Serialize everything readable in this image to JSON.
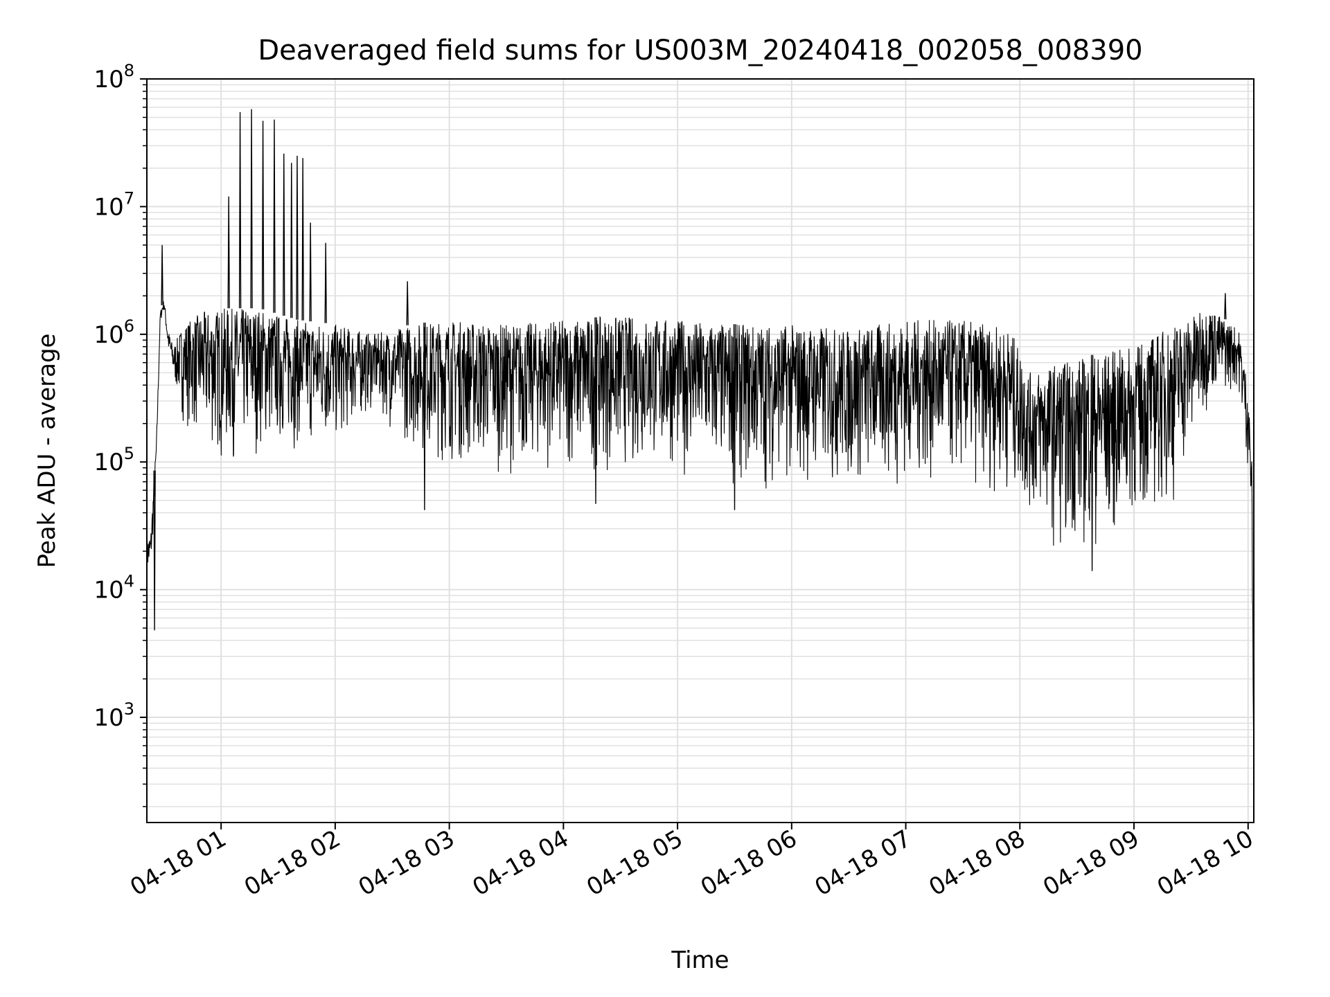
{
  "chart_data": {
    "type": "line",
    "title": "Deaveraged field sums for US003M_20240418_002058_008390",
    "xlabel": "Time",
    "ylabel": "Peak ADU - average",
    "yscale": "log",
    "ylim": [
      150,
      100000000
    ],
    "xlim": [
      "2024-04-18 00:20:58",
      "2024-04-18 10:03:00"
    ],
    "y_ticks": [
      {
        "value": 1000,
        "base": "10",
        "exp": "3"
      },
      {
        "value": 10000,
        "base": "10",
        "exp": "4"
      },
      {
        "value": 100000,
        "base": "10",
        "exp": "5"
      },
      {
        "value": 1000000,
        "base": "10",
        "exp": "6"
      },
      {
        "value": 10000000,
        "base": "10",
        "exp": "7"
      },
      {
        "value": 100000000,
        "base": "10",
        "exp": "8"
      }
    ],
    "x_ticks": [
      {
        "time": "2024-04-18 01:00",
        "label": "04-18 01"
      },
      {
        "time": "2024-04-18 02:00",
        "label": "04-18 02"
      },
      {
        "time": "2024-04-18 03:00",
        "label": "04-18 03"
      },
      {
        "time": "2024-04-18 04:00",
        "label": "04-18 04"
      },
      {
        "time": "2024-04-18 05:00",
        "label": "04-18 05"
      },
      {
        "time": "2024-04-18 06:00",
        "label": "04-18 06"
      },
      {
        "time": "2024-04-18 07:00",
        "label": "04-18 07"
      },
      {
        "time": "2024-04-18 08:00",
        "label": "04-18 08"
      },
      {
        "time": "2024-04-18 09:00",
        "label": "04-18 09"
      },
      {
        "time": "2024-04-18 10:00",
        "label": "04-18 10"
      }
    ],
    "grid": true,
    "line_color": "#000000",
    "grid_color": "#e0e0e0",
    "series": [
      {
        "band_top": [
          [
            "2024-04-18 00:20:58",
            25000
          ],
          [
            "2024-04-18 00:23:00",
            28000
          ],
          [
            "2024-04-18 00:26:00",
            150000
          ],
          [
            "2024-04-18 00:28:00",
            1500000
          ],
          [
            "2024-04-18 00:30:00",
            1900000
          ],
          [
            "2024-04-18 00:32:00",
            1100000
          ],
          [
            "2024-04-18 00:35:00",
            800000
          ],
          [
            "2024-04-18 00:40:00",
            1200000
          ],
          [
            "2024-04-18 00:50:00",
            1500000
          ],
          [
            "2024-04-18 01:00:00",
            1600000
          ],
          [
            "2024-04-18 01:20:00",
            1600000
          ],
          [
            "2024-04-18 01:40:00",
            1300000
          ],
          [
            "2024-04-18 02:00:00",
            1200000
          ],
          [
            "2024-04-18 02:20:00",
            1000000
          ],
          [
            "2024-04-18 02:40:00",
            1200000
          ],
          [
            "2024-04-18 03:00:00",
            1300000
          ],
          [
            "2024-04-18 03:30:00",
            1200000
          ],
          [
            "2024-04-18 04:00:00",
            1300000
          ],
          [
            "2024-04-18 04:30:00",
            1400000
          ],
          [
            "2024-04-18 05:00:00",
            1300000
          ],
          [
            "2024-04-18 05:30:00",
            1200000
          ],
          [
            "2024-04-18 06:00:00",
            1200000
          ],
          [
            "2024-04-18 06:30:00",
            1100000
          ],
          [
            "2024-04-18 07:00:00",
            1300000
          ],
          [
            "2024-04-18 07:30:00",
            1300000
          ],
          [
            "2024-04-18 07:55:00",
            1100000
          ],
          [
            "2024-04-18 08:05:00",
            500000
          ],
          [
            "2024-04-18 08:20:00",
            600000
          ],
          [
            "2024-04-18 08:40:00",
            700000
          ],
          [
            "2024-04-18 09:00:00",
            800000
          ],
          [
            "2024-04-18 09:20:00",
            1200000
          ],
          [
            "2024-04-18 09:40:00",
            1600000
          ],
          [
            "2024-04-18 09:55:00",
            1100000
          ],
          [
            "2024-04-18 10:00:00",
            400000
          ],
          [
            "2024-04-18 10:02:00",
            100000
          ],
          [
            "2024-04-18 10:03:00",
            300
          ]
        ],
        "band_bottom": [
          [
            "2024-04-18 00:20:58",
            12000
          ],
          [
            "2024-04-18 00:23:00",
            11000
          ],
          [
            "2024-04-18 00:26:00",
            90000
          ],
          [
            "2024-04-18 00:28:00",
            1200000
          ],
          [
            "2024-04-18 00:30:00",
            1500000
          ],
          [
            "2024-04-18 00:32:00",
            700000
          ],
          [
            "2024-04-18 00:35:00",
            400000
          ],
          [
            "2024-04-18 00:40:00",
            200000
          ],
          [
            "2024-04-18 00:50:00",
            120000
          ],
          [
            "2024-04-18 01:00:00",
            90000
          ],
          [
            "2024-04-18 01:20:00",
            110000
          ],
          [
            "2024-04-18 01:40:00",
            120000
          ],
          [
            "2024-04-18 02:00:00",
            120000
          ],
          [
            "2024-04-18 02:20:00",
            250000
          ],
          [
            "2024-04-18 02:40:00",
            120000
          ],
          [
            "2024-04-18 03:00:00",
            90000
          ],
          [
            "2024-04-18 03:30:00",
            80000
          ],
          [
            "2024-04-18 04:00:00",
            80000
          ],
          [
            "2024-04-18 04:30:00",
            80000
          ],
          [
            "2024-04-18 05:00:00",
            80000
          ],
          [
            "2024-04-18 05:30:00",
            60000
          ],
          [
            "2024-04-18 06:00:00",
            60000
          ],
          [
            "2024-04-18 06:30:00",
            55000
          ],
          [
            "2024-04-18 07:00:00",
            60000
          ],
          [
            "2024-04-18 07:30:00",
            60000
          ],
          [
            "2024-04-18 07:55:00",
            50000
          ],
          [
            "2024-04-18 08:05:00",
            35000
          ],
          [
            "2024-04-18 08:20:00",
            20000
          ],
          [
            "2024-04-18 08:40:00",
            18000
          ],
          [
            "2024-04-18 09:00:00",
            30000
          ],
          [
            "2024-04-18 09:20:00",
            40000
          ],
          [
            "2024-04-18 09:40:00",
            300000
          ],
          [
            "2024-04-18 09:55:00",
            350000
          ],
          [
            "2024-04-18 10:00:00",
            80000
          ],
          [
            "2024-04-18 10:02:00",
            20000
          ],
          [
            "2024-04-18 10:03:00",
            300
          ]
        ],
        "spikes": [
          [
            "2024-04-18 00:29:00",
            5000000
          ],
          [
            "2024-04-18 01:04:00",
            12000000
          ],
          [
            "2024-04-18 01:10:00",
            55000000
          ],
          [
            "2024-04-18 01:16:00",
            58000000
          ],
          [
            "2024-04-18 01:22:00",
            47000000
          ],
          [
            "2024-04-18 01:28:00",
            48000000
          ],
          [
            "2024-04-18 01:33:00",
            26000000
          ],
          [
            "2024-04-18 01:37:00",
            22000000
          ],
          [
            "2024-04-18 01:40:00",
            25000000
          ],
          [
            "2024-04-18 01:43:00",
            24000000
          ],
          [
            "2024-04-18 01:47:00",
            7500000
          ],
          [
            "2024-04-18 01:55:00",
            5200000
          ],
          [
            "2024-04-18 02:38:00",
            2600000
          ],
          [
            "2024-04-18 09:48:00",
            2100000
          ]
        ],
        "dips": [
          [
            "2024-04-18 00:25:00",
            4800
          ],
          [
            "2024-04-18 02:47:00",
            42000
          ],
          [
            "2024-04-18 04:17:00",
            47000
          ],
          [
            "2024-04-18 05:30:00",
            42000
          ],
          [
            "2024-04-18 08:38:00",
            14000
          ]
        ]
      }
    ]
  }
}
